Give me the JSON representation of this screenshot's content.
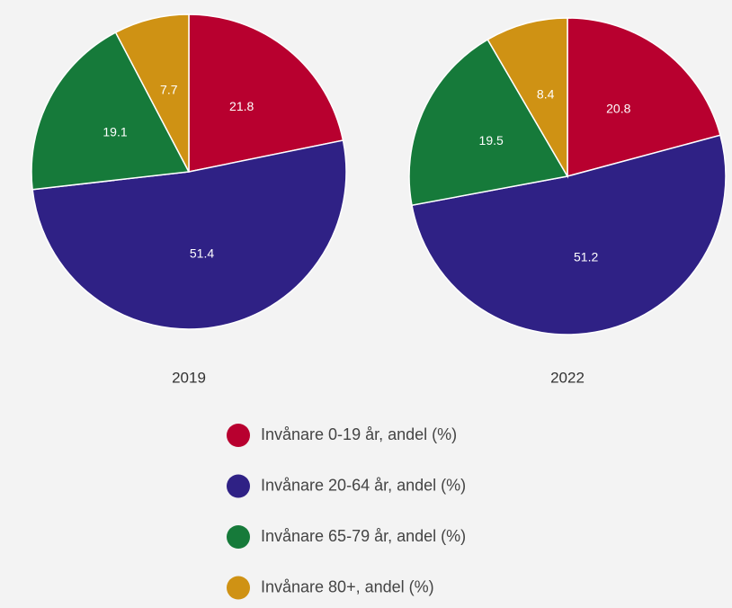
{
  "chart_data": {
    "type": "pie",
    "categories": [
      "Invånare 0-19 år, andel (%)",
      "Invånare 20-64 år, andel (%)",
      "Invånare 65-79 år, andel (%)",
      "Invånare 80+, andel (%)"
    ],
    "colors": [
      "#b8002f",
      "#2f2185",
      "#167a3a",
      "#cf9214"
    ],
    "series": [
      {
        "name": "2019",
        "values": [
          21.8,
          51.4,
          19.1,
          7.7
        ]
      },
      {
        "name": "2022",
        "values": [
          20.8,
          51.2,
          19.5,
          8.4
        ]
      }
    ]
  }
}
